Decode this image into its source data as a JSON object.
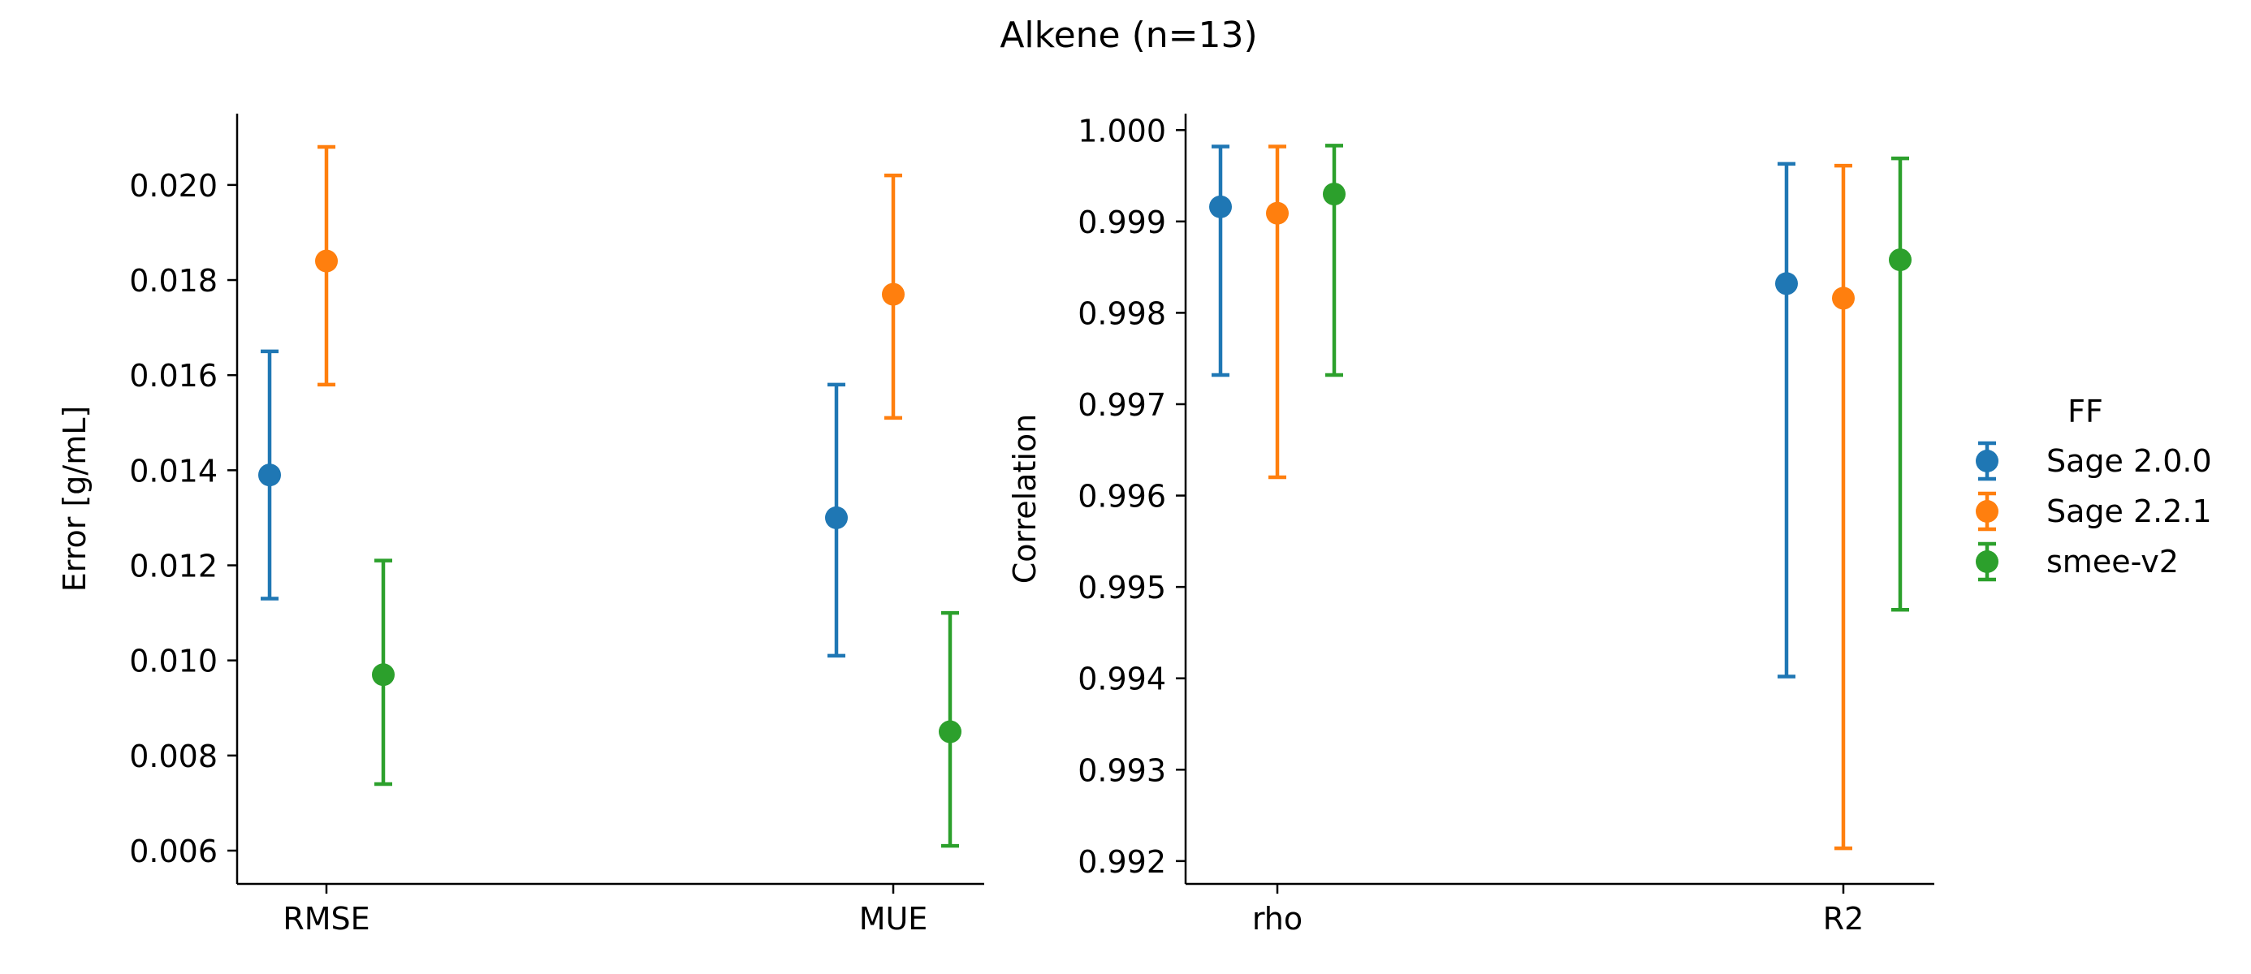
{
  "title": "Alkene (n=13)",
  "legend": {
    "title": "FF",
    "placement": "right",
    "items": [
      {
        "label": "Sage 2.0.0",
        "color": "#1f77b4"
      },
      {
        "label": "Sage 2.2.1",
        "color": "#ff7f0e"
      },
      {
        "label": "smee-v2",
        "color": "#2ca02c"
      }
    ]
  },
  "chart_data": [
    {
      "type": "pointplot",
      "ylabel": "Error [g/mL]",
      "xlabel": "",
      "categories": [
        "RMSE",
        "MUE"
      ],
      "ylim": [
        0.0053,
        0.0215
      ],
      "yticks": [
        0.006,
        0.008,
        0.01,
        0.012,
        0.014,
        0.016,
        0.018,
        0.02
      ],
      "ytick_labels": [
        "0.006",
        "0.008",
        "0.010",
        "0.012",
        "0.014",
        "0.016",
        "0.018",
        "0.020"
      ],
      "series": [
        {
          "name": "Sage 2.0.0",
          "color": "#1f77b4",
          "values": [
            0.0139,
            0.013
          ],
          "lower": [
            0.0113,
            0.0101
          ],
          "upper": [
            0.0165,
            0.0158
          ]
        },
        {
          "name": "Sage 2.2.1",
          "color": "#ff7f0e",
          "values": [
            0.0184,
            0.0177
          ],
          "lower": [
            0.0158,
            0.0151
          ],
          "upper": [
            0.0208,
            0.0202
          ]
        },
        {
          "name": "smee-v2",
          "color": "#2ca02c",
          "values": [
            0.0097,
            0.0085
          ],
          "lower": [
            0.0074,
            0.0061
          ],
          "upper": [
            0.0121,
            0.011
          ]
        }
      ]
    },
    {
      "type": "pointplot",
      "ylabel": "Correlation",
      "xlabel": "",
      "categories": [
        "rho",
        "R2"
      ],
      "ylim": [
        0.99175,
        1.00018
      ],
      "yticks": [
        0.992,
        0.993,
        0.994,
        0.995,
        0.996,
        0.997,
        0.998,
        0.999,
        1.0
      ],
      "ytick_labels": [
        "0.992",
        "0.993",
        "0.994",
        "0.995",
        "0.996",
        "0.997",
        "0.998",
        "0.999",
        "1.000"
      ],
      "series": [
        {
          "name": "Sage 2.0.0",
          "color": "#1f77b4",
          "values": [
            0.99916,
            0.99832
          ],
          "lower": [
            0.99732,
            0.99402
          ],
          "upper": [
            0.99982,
            0.99963
          ]
        },
        {
          "name": "Sage 2.2.1",
          "color": "#ff7f0e",
          "values": [
            0.99909,
            0.99816
          ],
          "lower": [
            0.9962,
            0.99214
          ],
          "upper": [
            0.99982,
            0.99961
          ]
        },
        {
          "name": "smee-v2",
          "color": "#2ca02c",
          "values": [
            0.9993,
            0.99858
          ],
          "lower": [
            0.99732,
            0.99475
          ],
          "upper": [
            0.99983,
            0.99969
          ]
        }
      ]
    }
  ]
}
